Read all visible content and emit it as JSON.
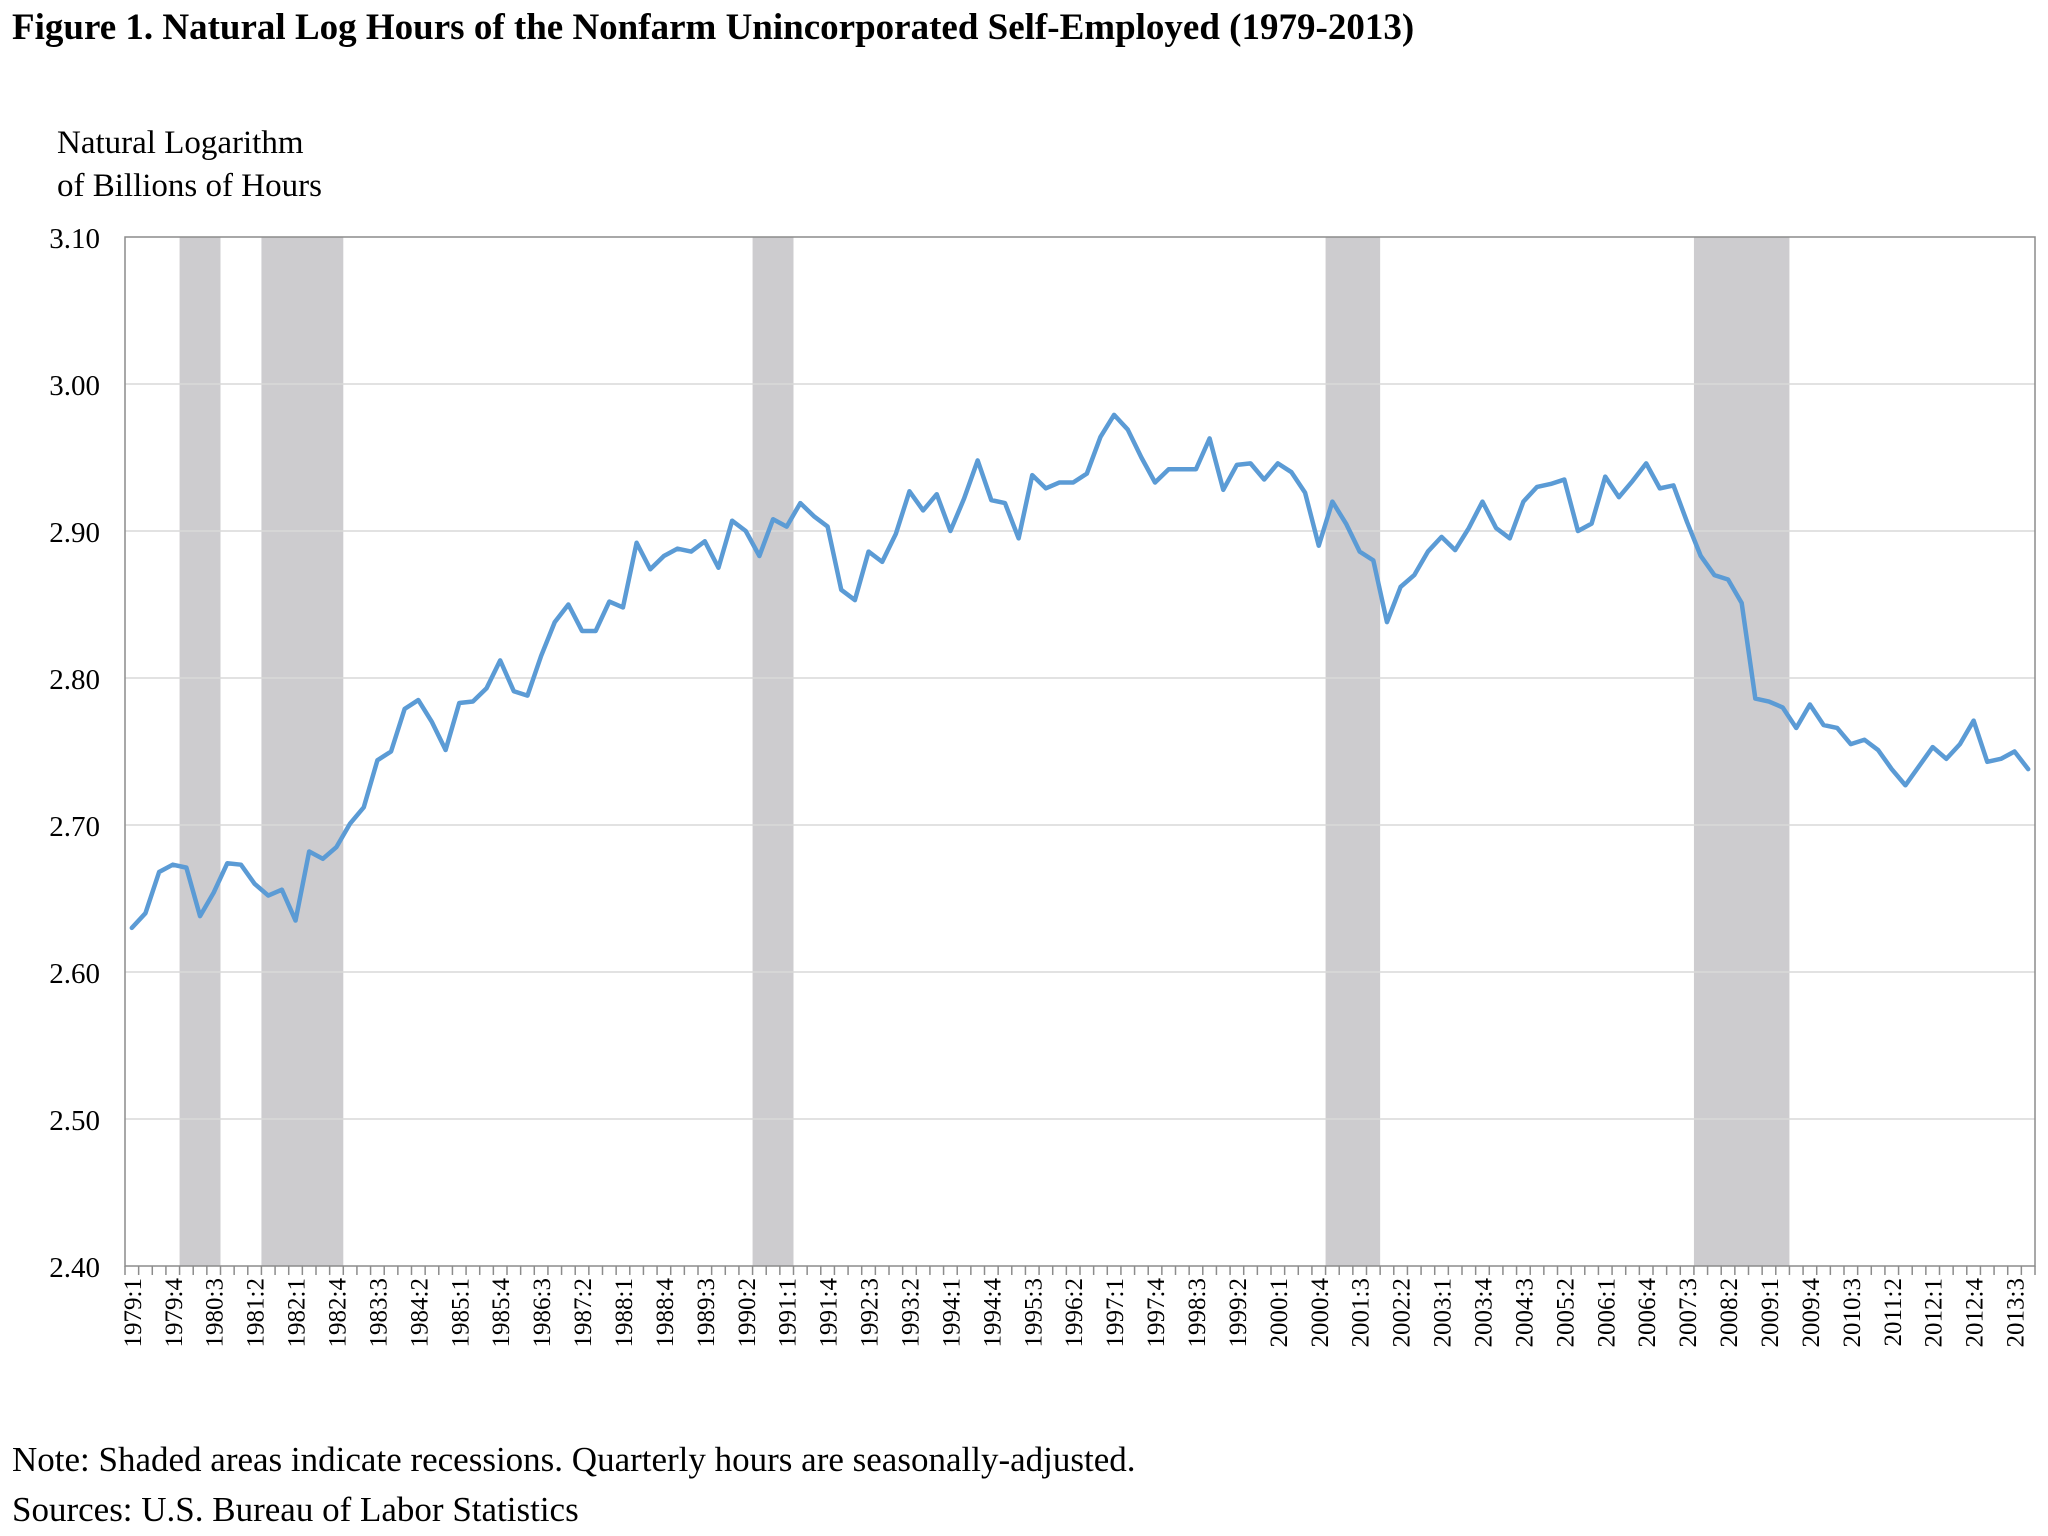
{
  "figure": {
    "title": "Figure 1. Natural Log Hours of the Nonfarm Unincorporated Self-Employed (1979-2013)",
    "ylabel_line1": "Natural Logarithm",
    "ylabel_line2": "of Billions of Hours",
    "note": "Note: Shaded areas indicate recessions.  Quarterly hours are seasonally-adjusted.",
    "sources": "Sources: U.S. Bureau of Labor Statistics"
  },
  "chart_data": {
    "type": "line",
    "title": "Figure 1. Natural Log Hours of the Nonfarm Unincorporated Self-Employed (1979-2013)",
    "xlabel": "",
    "ylabel": "Natural Logarithm of Billions of Hours",
    "ylim": [
      2.4,
      3.1
    ],
    "y_ticks": [
      "2.40",
      "2.50",
      "2.60",
      "2.70",
      "2.80",
      "2.90",
      "3.00",
      "3.10"
    ],
    "grid": "horizontal",
    "x_start": "1979:1",
    "quarters_count": 140,
    "x_tick_labels": [
      "1979:1",
      "1979:4",
      "1980:3",
      "1981:2",
      "1982:1",
      "1982:4",
      "1983:3",
      "1984:2",
      "1985:1",
      "1985:4",
      "1986:3",
      "1987:2",
      "1988:1",
      "1988:4",
      "1989:3",
      "1990:2",
      "1991:1",
      "1991:4",
      "1992:3",
      "1993:2",
      "1994:1",
      "1994:4",
      "1995:3",
      "1996:2",
      "1997:1",
      "1997:4",
      "1998:3",
      "1999:2",
      "2000:1",
      "2000:4",
      "2001:3",
      "2002:2",
      "2003:1",
      "2003:4",
      "2004:3",
      "2005:2",
      "2006:1",
      "2006:4",
      "2007:3",
      "2008:2",
      "2009:1",
      "2009:4",
      "2010:3",
      "2011:2",
      "2012:1",
      "2012:4",
      "2013:3"
    ],
    "recessions": [
      {
        "start": "1980:1",
        "end": "1980:3"
      },
      {
        "start": "1981:3",
        "end": "1982:4"
      },
      {
        "start": "1990:3",
        "end": "1991:1"
      },
      {
        "start": "2001:1",
        "end": "2001:4"
      },
      {
        "start": "2007:4",
        "end": "2009:2"
      }
    ],
    "series": [
      {
        "name": "Natural log hours",
        "color": "#5b9bd5",
        "values": [
          2.63,
          2.64,
          2.668,
          2.673,
          2.671,
          2.638,
          2.654,
          2.674,
          2.673,
          2.66,
          2.652,
          2.656,
          2.635,
          2.682,
          2.677,
          2.685,
          2.701,
          2.712,
          2.744,
          2.75,
          2.779,
          2.785,
          2.77,
          2.751,
          2.783,
          2.784,
          2.793,
          2.812,
          2.791,
          2.788,
          2.815,
          2.838,
          2.85,
          2.832,
          2.832,
          2.852,
          2.848,
          2.892,
          2.874,
          2.883,
          2.888,
          2.886,
          2.893,
          2.875,
          2.907,
          2.9,
          2.883,
          2.908,
          2.903,
          2.919,
          2.91,
          2.903,
          2.86,
          2.853,
          2.886,
          2.879,
          2.898,
          2.927,
          2.914,
          2.925,
          2.9,
          2.922,
          2.948,
          2.921,
          2.919,
          2.895,
          2.938,
          2.929,
          2.933,
          2.933,
          2.939,
          2.964,
          2.979,
          2.969,
          2.95,
          2.933,
          2.942,
          2.942,
          2.942,
          2.963,
          2.928,
          2.945,
          2.946,
          2.935,
          2.946,
          2.94,
          2.926,
          2.89,
          2.92,
          2.905,
          2.886,
          2.88,
          2.838,
          2.862,
          2.87,
          2.886,
          2.896,
          2.887,
          2.902,
          2.92,
          2.902,
          2.895,
          2.92,
          2.93,
          2.932,
          2.935,
          2.9,
          2.905,
          2.937,
          2.923,
          2.934,
          2.946,
          2.929,
          2.931,
          2.906,
          2.883,
          2.87,
          2.867,
          2.851,
          2.786,
          2.784,
          2.78,
          2.766,
          2.782,
          2.768,
          2.766,
          2.755,
          2.758,
          2.751,
          2.738,
          2.727,
          2.74,
          2.753,
          2.745,
          2.755,
          2.771,
          2.743,
          2.745,
          2.75,
          2.738
        ]
      }
    ]
  }
}
